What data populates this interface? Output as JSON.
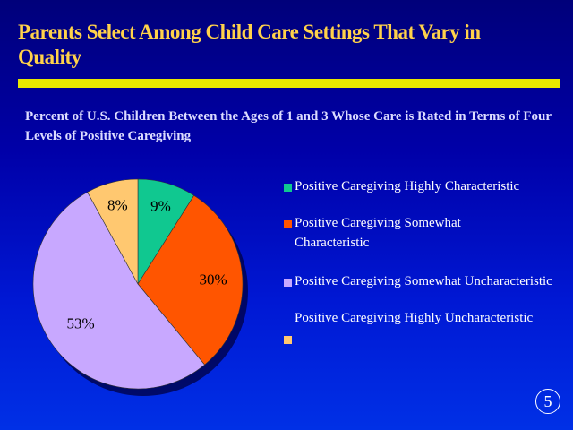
{
  "slide": {
    "title": "Parents Select Among Child Care Settings That Vary in Quality",
    "subtitle": "Percent of U.S. Children Between the Ages of 1 and 3 Whose Care is Rated in Terms of Four Levels of Positive Caregiving",
    "page_number": "5"
  },
  "chart_data": {
    "type": "pie",
    "title": "Percent of U.S. Children Between the Ages of 1 and 3 Whose Care is Rated in Terms of Four Levels of Positive Caregiving",
    "categories": [
      "Positive Caregiving Highly Characteristic",
      "Positive Caregiving Somewhat Characteristic",
      "Positive Caregiving Somewhat Uncharacteristic",
      "Positive Caregiving Highly Uncharacteristic"
    ],
    "values": [
      9,
      30,
      53,
      8
    ],
    "data_labels": [
      "9%",
      "30%",
      "53%",
      "8%"
    ],
    "colors": [
      "#10c890",
      "#ff5500",
      "#c8a8ff",
      "#ffc870"
    ],
    "legend_placement": "right"
  }
}
